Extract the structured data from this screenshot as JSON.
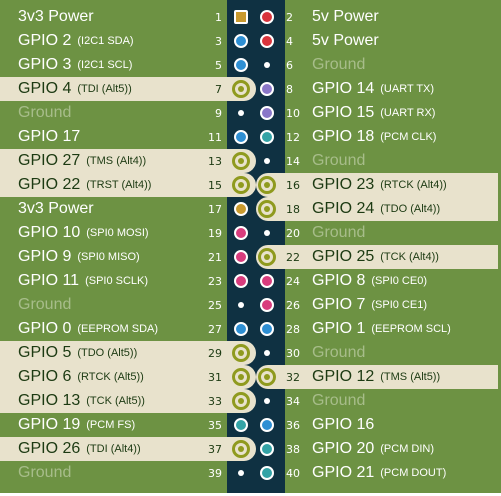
{
  "pins": [
    {
      "num": "1",
      "name": "3v3 Power",
      "sub": "",
      "kind": "p3v3"
    },
    {
      "num": "2",
      "name": "5v Power",
      "sub": "",
      "kind": "p5v"
    },
    {
      "num": "3",
      "name": "GPIO 2",
      "sub": "(I2C1 SDA)",
      "kind": "i2c"
    },
    {
      "num": "4",
      "name": "5v Power",
      "sub": "",
      "kind": "p5v"
    },
    {
      "num": "5",
      "name": "GPIO 3",
      "sub": "(I2C1 SCL)",
      "kind": "i2c"
    },
    {
      "num": "6",
      "name": "Ground",
      "sub": "",
      "kind": "ground"
    },
    {
      "num": "7",
      "name": "GPIO 4",
      "sub": "(TDI (Alt5))",
      "kind": "plain"
    },
    {
      "num": "8",
      "name": "GPIO 14",
      "sub": "(UART TX)",
      "kind": "uart"
    },
    {
      "num": "9",
      "name": "Ground",
      "sub": "",
      "kind": "ground"
    },
    {
      "num": "10",
      "name": "GPIO 15",
      "sub": "(UART RX)",
      "kind": "uart"
    },
    {
      "num": "11",
      "name": "GPIO 17",
      "sub": "",
      "kind": "gpio"
    },
    {
      "num": "12",
      "name": "GPIO 18",
      "sub": "(PCM CLK)",
      "kind": "pcm"
    },
    {
      "num": "13",
      "name": "GPIO 27",
      "sub": "(TMS (Alt4))",
      "kind": "plain"
    },
    {
      "num": "14",
      "name": "Ground",
      "sub": "",
      "kind": "ground"
    },
    {
      "num": "15",
      "name": "GPIO 22",
      "sub": "(TRST (Alt4))",
      "kind": "plain"
    },
    {
      "num": "16",
      "name": "GPIO 23",
      "sub": "(RTCK (Alt4))",
      "kind": "plain"
    },
    {
      "num": "17",
      "name": "3v3 Power",
      "sub": "",
      "kind": "p3v3"
    },
    {
      "num": "18",
      "name": "GPIO 24",
      "sub": "(TDO (Alt4))",
      "kind": "plain"
    },
    {
      "num": "19",
      "name": "GPIO 10",
      "sub": "(SPI0 MOSI)",
      "kind": "spi"
    },
    {
      "num": "20",
      "name": "Ground",
      "sub": "",
      "kind": "ground"
    },
    {
      "num": "21",
      "name": "GPIO 9",
      "sub": "(SPI0 MISO)",
      "kind": "spi"
    },
    {
      "num": "22",
      "name": "GPIO 25",
      "sub": "(TCK (Alt4))",
      "kind": "plain"
    },
    {
      "num": "23",
      "name": "GPIO 11",
      "sub": "(SPI0 SCLK)",
      "kind": "spi"
    },
    {
      "num": "24",
      "name": "GPIO 8",
      "sub": "(SPI0 CE0)",
      "kind": "spi"
    },
    {
      "num": "25",
      "name": "Ground",
      "sub": "",
      "kind": "ground"
    },
    {
      "num": "26",
      "name": "GPIO 7",
      "sub": "(SPI0 CE1)",
      "kind": "spi"
    },
    {
      "num": "27",
      "name": "GPIO 0",
      "sub": "(EEPROM SDA)",
      "kind": "gpio"
    },
    {
      "num": "28",
      "name": "GPIO 1",
      "sub": "(EEPROM SCL)",
      "kind": "gpio"
    },
    {
      "num": "29",
      "name": "GPIO 5",
      "sub": "(TDO (Alt5))",
      "kind": "plain"
    },
    {
      "num": "30",
      "name": "Ground",
      "sub": "",
      "kind": "ground"
    },
    {
      "num": "31",
      "name": "GPIO 6",
      "sub": "(RTCK (Alt5))",
      "kind": "plain"
    },
    {
      "num": "32",
      "name": "GPIO 12",
      "sub": "(TMS (Alt5))",
      "kind": "plain"
    },
    {
      "num": "33",
      "name": "GPIO 13",
      "sub": "(TCK (Alt5))",
      "kind": "plain"
    },
    {
      "num": "34",
      "name": "Ground",
      "sub": "",
      "kind": "ground"
    },
    {
      "num": "35",
      "name": "GPIO 19",
      "sub": "(PCM FS)",
      "kind": "pcm"
    },
    {
      "num": "36",
      "name": "GPIO 16",
      "sub": "",
      "kind": "gpio"
    },
    {
      "num": "37",
      "name": "GPIO 26",
      "sub": "(TDI (Alt4))",
      "kind": "plain"
    },
    {
      "num": "38",
      "name": "GPIO 20",
      "sub": "(PCM DIN)",
      "kind": "pcm"
    },
    {
      "num": "39",
      "name": "Ground",
      "sub": "",
      "kind": "ground"
    },
    {
      "num": "40",
      "name": "GPIO 21",
      "sub": "(PCM DOUT)",
      "kind": "pcm"
    }
  ],
  "highlighted_pins": [
    "7",
    "13",
    "15",
    "16",
    "18",
    "22",
    "29",
    "31",
    "32",
    "33",
    "37"
  ],
  "colors": {
    "board_green": "#6d9243",
    "header_strip": "#0f3142",
    "highlight_band": "#e8e2cc",
    "power_3v3": "#c99a2e",
    "power_5v": "#d9343c",
    "gpio_blue": "#2e8fd3",
    "uart_purple": "#8a77c8",
    "pcm_teal": "#33a3a6",
    "spi_pink": "#d83c7d",
    "jtag_olive": "#8f9a1e"
  }
}
